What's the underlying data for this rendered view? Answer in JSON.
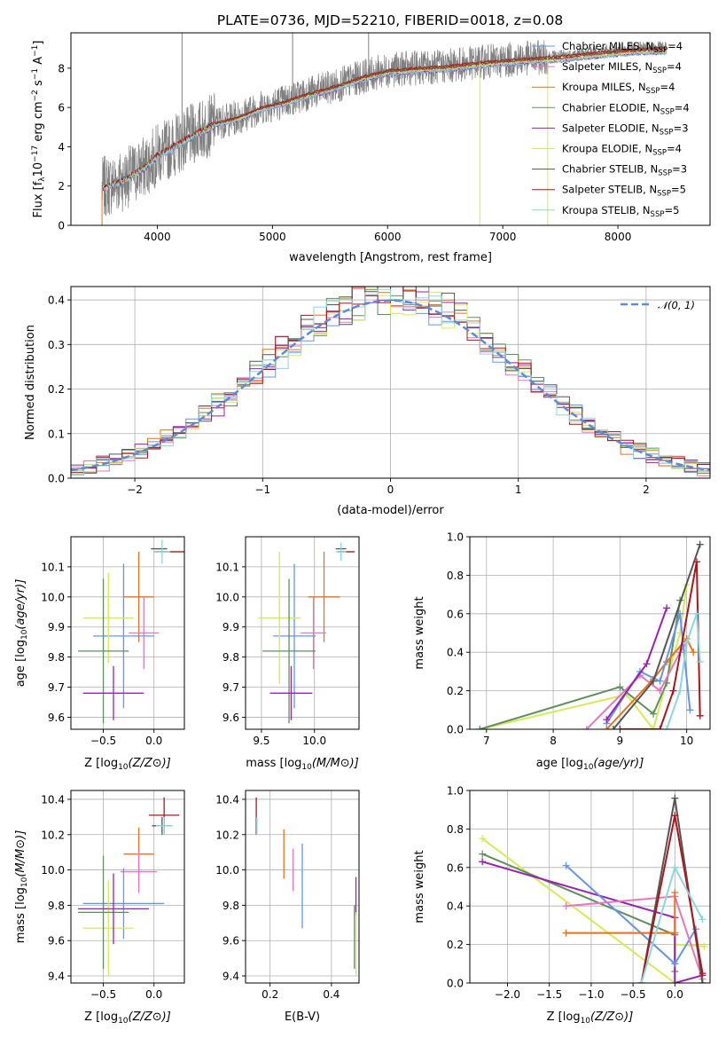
{
  "figure_title": "PLATE=0736, MJD=52210, FIBERID=0018, z=0.08",
  "colors": {
    "Chabrier MILES": "#6495ed",
    "Salpeter MILES": "#e377c2",
    "Kroupa MILES": "#e8711c",
    "Chabrier ELODIE": "#5f8f5f",
    "Salpeter ELODIE": "#9b1fb0",
    "Kroupa ELODIE": "#d4ec54",
    "Chabrier STELIB": "#555555",
    "Salpeter STELIB": "#b0141b",
    "Kroupa STELIB": "#8ad8dc",
    "data": "#808080",
    "gaussian": "#5b8bd9",
    "grid": "#b0b0b0"
  },
  "chart_data": [
    {
      "type": "line",
      "panel": "spectrum",
      "xlabel": "wavelength [Angstrom, rest frame]",
      "ylabel": "Flux [f_λ 10^-17 erg cm^-2 s^-1 A^-1]",
      "ylabel_parts": {
        "pre": "Flux [f",
        "sub1": "λ",
        "mid": "10",
        "sup1": "−17",
        "post1": " erg cm",
        "sup2": "−2",
        "post2": " s",
        "sup3": "−1",
        "post3": " A",
        "sup4": "−1",
        "end": "]"
      },
      "xlim": [
        3250,
        8800
      ],
      "ylim": [
        0,
        9.8
      ],
      "xticks": [
        4000,
        5000,
        6000,
        7000,
        8000
      ],
      "yticks": [
        0,
        2,
        4,
        6,
        8
      ],
      "data_range": [
        3520,
        8420
      ],
      "continuum": {
        "x": [
          3520,
          3700,
          3900,
          4000,
          4100,
          4300,
          4500,
          4700,
          4900,
          5100,
          5300,
          5500,
          5800,
          6000,
          6200,
          6500,
          6800,
          7000,
          7200,
          7500,
          7800,
          8000,
          8200,
          8420
        ],
        "y": [
          1.9,
          2.3,
          3.0,
          3.6,
          3.9,
          4.6,
          5.2,
          5.5,
          6.0,
          6.3,
          6.7,
          7.0,
          7.6,
          7.9,
          8.0,
          8.1,
          8.3,
          8.4,
          8.5,
          8.6,
          8.8,
          8.9,
          9.0,
          9.0
        ]
      },
      "spikes": [
        {
          "x": 4215,
          "ymax": 9.8
        },
        {
          "x": 5175,
          "ymax": 9.8
        },
        {
          "x": 5835,
          "ymax": 9.8
        },
        {
          "x": 6800,
          "ymin": 0
        },
        {
          "x": 7390,
          "ymin": 0
        },
        {
          "x": 3520,
          "ymin": 0
        }
      ],
      "legend": [
        {
          "label": "Chabrier MILES, N",
          "sub": "SSP",
          "n": "=4"
        },
        {
          "label": "Salpeter MILES, N",
          "sub": "SSP",
          "n": "=4"
        },
        {
          "label": "Kroupa MILES, N",
          "sub": "SSP",
          "n": "=4"
        },
        {
          "label": "Chabrier ELODIE, N",
          "sub": "SSP",
          "n": "=4"
        },
        {
          "label": "Salpeter ELODIE, N",
          "sub": "SSP",
          "n": "=3"
        },
        {
          "label": "Kroupa ELODIE, N",
          "sub": "SSP",
          "n": "=4"
        },
        {
          "label": "Chabrier STELIB, N",
          "sub": "SSP",
          "n": "=3"
        },
        {
          "label": "Salpeter STELIB, N",
          "sub": "SSP",
          "n": "=5"
        },
        {
          "label": "Kroupa STELIB, N",
          "sub": "SSP",
          "n": "=5"
        }
      ],
      "legend_placement": "right",
      "grid": false
    },
    {
      "type": "line",
      "panel": "residuals",
      "xlabel": "(data-model)/error",
      "ylabel": "Normed distribution",
      "xlim": [
        -2.5,
        2.5
      ],
      "ylim": [
        0,
        0.43
      ],
      "xticks": [
        -2,
        -1,
        0,
        1,
        2
      ],
      "yticks": [
        0.0,
        0.1,
        0.2,
        0.3,
        0.4
      ],
      "bin_width": 0.1,
      "legend": {
        "label": "𝒩(0, 1)"
      },
      "legend_placement": "top-right",
      "grid": true
    },
    {
      "type": "scatter",
      "panel": "age_vs_Z",
      "xlabel": "Z [log10(Z/Z⊙)]",
      "ylabel": "age [log10(age/yr)]",
      "xlim": [
        -0.82,
        0.3
      ],
      "ylim": [
        9.56,
        10.2
      ],
      "xticks": [
        -0.5,
        0.0
      ],
      "yticks": [
        9.6,
        9.7,
        9.8,
        9.9,
        10.0,
        10.1
      ],
      "points": [
        {
          "x": 0.15,
          "y": 10.15,
          "c": "Salpeter STELIB",
          "xe": 0.15,
          "ye": 0.0
        },
        {
          "x": 0.05,
          "y": 10.16,
          "c": "Chabrier STELIB",
          "xe": 0.08,
          "ye": 0.0
        },
        {
          "x": 0.08,
          "y": 10.15,
          "c": "Kroupa STELIB",
          "xe": 0.08,
          "ye": 0.04
        },
        {
          "x": -0.15,
          "y": 10.0,
          "c": "Kroupa MILES",
          "xe": 0.15,
          "ye": 0.15
        },
        {
          "x": -0.1,
          "y": 9.88,
          "c": "Salpeter MILES",
          "xe": 0.15,
          "ye": 0.12
        },
        {
          "x": -0.3,
          "y": 9.87,
          "c": "Chabrier MILES",
          "xe": 0.3,
          "ye": 0.24
        },
        {
          "x": -0.45,
          "y": 9.93,
          "c": "Kroupa ELODIE",
          "xe": 0.25,
          "ye": 0.15
        },
        {
          "x": -0.5,
          "y": 9.82,
          "c": "Chabrier ELODIE",
          "xe": 0.25,
          "ye": 0.24
        },
        {
          "x": -0.4,
          "y": 9.68,
          "c": "Salpeter ELODIE",
          "xe": 0.3,
          "ye": 0.09
        }
      ],
      "grid": true
    },
    {
      "type": "scatter",
      "panel": "age_vs_mass",
      "xlabel": "mass [log10(M/M⊙)]",
      "ylabel": "",
      "xlim": [
        9.35,
        10.42
      ],
      "ylim": [
        9.56,
        10.2
      ],
      "xticks": [
        9.5,
        10.0
      ],
      "yticks": [
        9.6,
        9.7,
        9.8,
        9.9,
        10.0,
        10.1
      ],
      "points": [
        {
          "x": 10.3,
          "y": 10.15,
          "c": "Salpeter STELIB",
          "xe": 0.08,
          "ye": 0.0
        },
        {
          "x": 10.25,
          "y": 10.16,
          "c": "Chabrier STELIB",
          "xe": 0.05,
          "ye": 0.0
        },
        {
          "x": 10.25,
          "y": 10.15,
          "c": "Kroupa STELIB",
          "xe": 0.05,
          "ye": 0.03
        },
        {
          "x": 10.09,
          "y": 10.0,
          "c": "Kroupa MILES",
          "xe": 0.15,
          "ye": 0.15
        },
        {
          "x": 9.99,
          "y": 9.88,
          "c": "Salpeter MILES",
          "xe": 0.12,
          "ye": 0.12
        },
        {
          "x": 9.81,
          "y": 9.87,
          "c": "Chabrier MILES",
          "xe": 0.2,
          "ye": 0.24
        },
        {
          "x": 9.67,
          "y": 9.93,
          "c": "Kroupa ELODIE",
          "xe": 0.2,
          "ye": 0.22
        },
        {
          "x": 9.76,
          "y": 9.82,
          "c": "Chabrier ELODIE",
          "xe": 0.25,
          "ye": 0.24
        },
        {
          "x": 9.78,
          "y": 9.68,
          "c": "Salpeter ELODIE",
          "xe": 0.2,
          "ye": 0.09
        }
      ],
      "grid": true
    },
    {
      "type": "line",
      "panel": "weight_vs_age",
      "xlabel": "age [log10(age/yr)]",
      "ylabel": "mass weight",
      "xlim": [
        6.75,
        10.35
      ],
      "ylim": [
        0,
        1
      ],
      "xticks": [
        7,
        8,
        9,
        10
      ],
      "yticks": [
        0.0,
        0.2,
        0.4,
        0.6,
        0.8,
        1.0
      ],
      "series": [
        {
          "c": "Kroupa ELODIE",
          "x": [
            6.9,
            9.1,
            9.5,
            9.9,
            10.0
          ],
          "y": [
            0.0,
            0.18,
            0.0,
            0.5,
            0.75
          ]
        },
        {
          "c": "Chabrier ELODIE",
          "x": [
            6.9,
            9.0,
            9.5,
            9.7,
            9.9
          ],
          "y": [
            0.0,
            0.22,
            0.08,
            0.24,
            0.67
          ]
        },
        {
          "c": "Salpeter MILES",
          "x": [
            8.5,
            9.3,
            9.6,
            9.9,
            10.0
          ],
          "y": [
            0.0,
            0.28,
            0.2,
            0.4,
            0.45
          ]
        },
        {
          "c": "Kroupa MILES",
          "x": [
            8.8,
            9.5,
            9.7,
            10.0,
            10.1
          ],
          "y": [
            0.0,
            0.26,
            0.35,
            0.47,
            0.4
          ]
        },
        {
          "c": "Chabrier MILES",
          "x": [
            8.8,
            9.3,
            9.6,
            9.9,
            10.05
          ],
          "y": [
            0.03,
            0.3,
            0.25,
            0.6,
            0.1
          ]
        },
        {
          "c": "Salpeter ELODIE",
          "x": [
            8.8,
            9.4,
            9.7
          ],
          "y": [
            0.05,
            0.34,
            0.63
          ]
        },
        {
          "c": "Chabrier STELIB",
          "x": [
            8.9,
            9.5,
            10.2
          ],
          "y": [
            0.0,
            0.25,
            0.96
          ]
        },
        {
          "c": "Salpeter STELIB",
          "x": [
            9.0,
            9.6,
            9.8,
            10.15,
            10.2
          ],
          "y": [
            0.0,
            0.0,
            0.2,
            0.87,
            0.07
          ]
        },
        {
          "c": "Kroupa STELIB",
          "x": [
            9.7,
            9.9,
            10.0,
            10.15,
            10.2
          ],
          "y": [
            0.0,
            0.2,
            0.45,
            0.6,
            0.35
          ]
        }
      ],
      "grid": true
    },
    {
      "type": "scatter",
      "panel": "mass_vs_Z",
      "xlabel": "Z [log10(Z/Z⊙)]",
      "ylabel": "mass [log10(M/M⊙)]",
      "xlim": [
        -0.82,
        0.3
      ],
      "ylim": [
        9.36,
        10.45
      ],
      "xticks": [
        -0.5,
        0.0
      ],
      "yticks": [
        9.4,
        9.6,
        9.8,
        10.0,
        10.2,
        10.4
      ],
      "points": [
        {
          "x": 0.1,
          "y": 10.31,
          "c": "Salpeter STELIB",
          "xe": 0.15,
          "ye": 0.1
        },
        {
          "x": 0.08,
          "y": 10.25,
          "c": "Chabrier STELIB",
          "xe": 0.1,
          "ye": 0.05
        },
        {
          "x": 0.1,
          "y": 10.25,
          "c": "Kroupa STELIB",
          "xe": 0.08,
          "ye": 0.05
        },
        {
          "x": -0.15,
          "y": 10.09,
          "c": "Kroupa MILES",
          "xe": 0.15,
          "ye": 0.15
        },
        {
          "x": -0.15,
          "y": 9.99,
          "c": "Salpeter MILES",
          "xe": 0.18,
          "ye": 0.12
        },
        {
          "x": -0.3,
          "y": 9.81,
          "c": "Chabrier MILES",
          "xe": 0.4,
          "ye": 0.2
        },
        {
          "x": -0.45,
          "y": 9.67,
          "c": "Kroupa ELODIE",
          "xe": 0.25,
          "ye": 0.27
        },
        {
          "x": -0.5,
          "y": 9.76,
          "c": "Chabrier ELODIE",
          "xe": 0.25,
          "ye": 0.32
        },
        {
          "x": -0.4,
          "y": 9.78,
          "c": "Salpeter ELODIE",
          "xe": 0.35,
          "ye": 0.2
        }
      ],
      "grid": true
    },
    {
      "type": "scatter",
      "panel": "mass_vs_EBV",
      "xlabel": "E(B-V)",
      "ylabel": "",
      "xlim": [
        0.12,
        0.49
      ],
      "ylim": [
        9.36,
        10.45
      ],
      "xticks": [
        0.2,
        0.4
      ],
      "yticks": [
        9.4,
        9.6,
        9.8,
        10.0,
        10.2,
        10.4
      ],
      "points": [
        {
          "x": 0.155,
          "y": 10.31,
          "c": "Salpeter STELIB",
          "xe": 0,
          "ye": 0.1
        },
        {
          "x": 0.155,
          "y": 10.25,
          "c": "Chabrier STELIB",
          "xe": 0,
          "ye": 0.05
        },
        {
          "x": 0.157,
          "y": 10.25,
          "c": "Kroupa STELIB",
          "xe": 0,
          "ye": 0.05
        },
        {
          "x": 0.245,
          "y": 10.09,
          "c": "Kroupa MILES",
          "xe": 0,
          "ye": 0.14
        },
        {
          "x": 0.275,
          "y": 10.0,
          "c": "Salpeter MILES",
          "xe": 0,
          "ye": 0.12
        },
        {
          "x": 0.305,
          "y": 9.91,
          "c": "Chabrier MILES",
          "xe": 0,
          "ye": 0.24
        },
        {
          "x": 0.475,
          "y": 9.62,
          "c": "Chabrier ELODIE",
          "xe": 0,
          "ye": 0.18
        },
        {
          "x": 0.48,
          "y": 9.85,
          "c": "Salpeter ELODIE",
          "xe": 0,
          "ye": 0.11
        },
        {
          "x": 0.48,
          "y": 9.58,
          "c": "Kroupa ELODIE",
          "xe": 0,
          "ye": 0.18
        }
      ],
      "grid": true
    },
    {
      "type": "line",
      "panel": "weight_vs_Z",
      "xlabel": "Z [log10(Z/Z⊙)]",
      "ylabel": "mass weight",
      "xlim": [
        -2.45,
        0.42
      ],
      "ylim": [
        0,
        1
      ],
      "xticks": [
        -2.0,
        -1.5,
        -1.0,
        -0.5,
        0.0
      ],
      "yticks": [
        0.0,
        0.2,
        0.4,
        0.6,
        0.8,
        1.0
      ],
      "series": [
        {
          "c": "Kroupa ELODIE",
          "x": [
            -2.3,
            0.0,
            0.0,
            0.35
          ],
          "y": [
            0.75,
            0.0,
            0.2,
            0.19
          ]
        },
        {
          "c": "Chabrier ELODIE",
          "x": [
            -2.3,
            0.0,
            0.0
          ],
          "y": [
            0.67,
            0.25,
            0.06
          ]
        },
        {
          "c": "Salpeter ELODIE",
          "x": [
            -2.3,
            0.0,
            0.0,
            0.33
          ],
          "y": [
            0.63,
            0.34,
            0.0,
            0.04
          ]
        },
        {
          "c": "Chabrier MILES",
          "x": [
            -1.3,
            0.0,
            0.25,
            0.33
          ],
          "y": [
            0.61,
            0.1,
            0.28,
            0.0
          ]
        },
        {
          "c": "Salpeter MILES",
          "x": [
            -1.3,
            0.0,
            0.33
          ],
          "y": [
            0.4,
            0.45,
            0.02
          ]
        },
        {
          "c": "Kroupa MILES",
          "x": [
            -1.3,
            0.0,
            0.0
          ],
          "y": [
            0.26,
            0.26,
            0.47
          ]
        },
        {
          "c": "Chabrier STELIB",
          "x": [
            -0.4,
            0.0,
            0.33
          ],
          "y": [
            0.0,
            0.96,
            0.0
          ]
        },
        {
          "c": "Salpeter STELIB",
          "x": [
            -0.4,
            0.0,
            0.33
          ],
          "y": [
            0.0,
            0.87,
            0.05
          ]
        },
        {
          "c": "Kroupa STELIB",
          "x": [
            -0.4,
            0.0,
            0.33
          ],
          "y": [
            0.0,
            0.6,
            0.33
          ]
        }
      ],
      "grid": true
    }
  ]
}
